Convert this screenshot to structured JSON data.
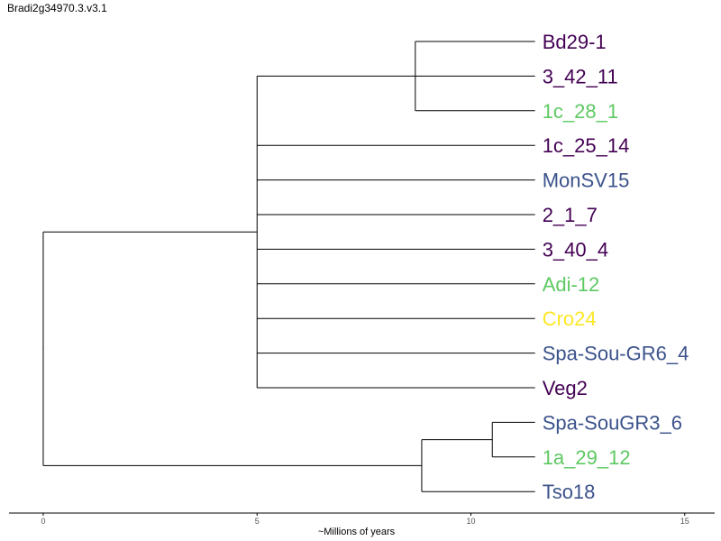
{
  "title": "Bradi2g34970.3.v3.1",
  "axis": {
    "title": "~Millions of years",
    "ticks": [
      "0",
      "5",
      "10",
      "15"
    ],
    "tick_values": [
      0,
      5,
      10,
      15
    ],
    "range": [
      -0.8,
      15.7
    ]
  },
  "colors": {
    "dark_purple": "#440154",
    "blue": "#3b528b",
    "green": "#5ec962",
    "yellow": "#fde725",
    "line": "#000000"
  },
  "leaves": [
    {
      "label": "Bd29-1",
      "color": "#440154"
    },
    {
      "label": "3_42_11",
      "color": "#440154"
    },
    {
      "label": "1c_28_1",
      "color": "#5ec962"
    },
    {
      "label": "1c_25_14",
      "color": "#440154"
    },
    {
      "label": "MonSV15",
      "color": "#3b528b"
    },
    {
      "label": "2_1_7",
      "color": "#440154"
    },
    {
      "label": "3_40_4",
      "color": "#440154"
    },
    {
      "label": "Adi-12",
      "color": "#5ec962"
    },
    {
      "label": "Cro24",
      "color": "#fde725"
    },
    {
      "label": "Spa-Sou-GR6_4",
      "color": "#3b528b"
    },
    {
      "label": "Veg2",
      "color": "#440154"
    },
    {
      "label": "Spa-SouGR3_6",
      "color": "#3b528b"
    },
    {
      "label": "1a_29_12",
      "color": "#5ec962"
    },
    {
      "label": "Tso18",
      "color": "#3b528b"
    }
  ],
  "tree": {
    "name": "root",
    "height": 0,
    "children": [
      {
        "name": "cladeA",
        "height": 5,
        "children": [
          {
            "name": "cladeA1",
            "height": 8.7,
            "children": [
              {
                "leaf": 0
              },
              {
                "leaf": 1
              },
              {
                "leaf": 2
              }
            ]
          },
          {
            "leaf": 3
          },
          {
            "leaf": 4
          },
          {
            "leaf": 5
          },
          {
            "leaf": 6
          },
          {
            "leaf": 7
          },
          {
            "leaf": 8
          },
          {
            "leaf": 9
          },
          {
            "leaf": 10
          }
        ]
      },
      {
        "name": "cladeB",
        "height": 8.85,
        "children": [
          {
            "name": "cladeB1",
            "height": 10.5,
            "children": [
              {
                "leaf": 11
              },
              {
                "leaf": 12
              }
            ]
          },
          {
            "leaf": 13
          }
        ]
      }
    ]
  },
  "leaf_height": 11.5
}
